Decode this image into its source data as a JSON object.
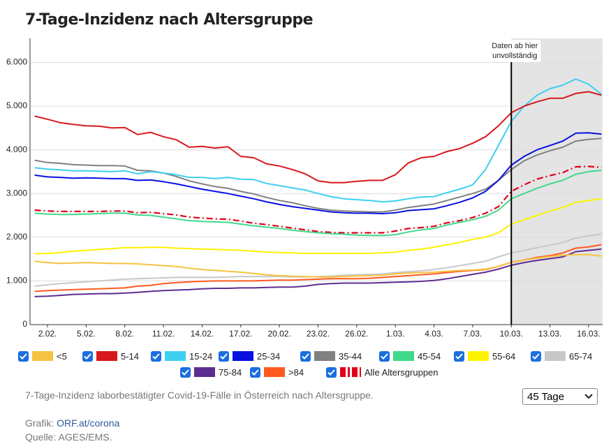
{
  "chart_data": {
    "type": "line",
    "title": "7-Tage-Inzidenz nach Altersgruppe",
    "categories": [
      null,
      "2.02.",
      null,
      null,
      "5.02.",
      null,
      null,
      "8.02.",
      null,
      null,
      "11.02.",
      null,
      null,
      "14.02.",
      null,
      null,
      "17.02.",
      null,
      null,
      "20.02.",
      null,
      null,
      "23.02.",
      null,
      null,
      "26.02.",
      null,
      null,
      "1.03.",
      null,
      null,
      "4.03.",
      null,
      null,
      "7.03.",
      null,
      null,
      "10.03.",
      null,
      null,
      "13.03.",
      null,
      null,
      "16.03.",
      null
    ],
    "ylim": [
      0,
      6550
    ],
    "yticks": [
      0,
      {
        "value": 1000,
        "label": "1.000"
      },
      {
        "value": 2000,
        "label": "2.000"
      },
      {
        "value": 3000,
        "label": "3.000"
      },
      {
        "value": 4000,
        "label": "4.000"
      },
      {
        "value": 5000,
        "label": "5.000"
      },
      {
        "value": 6000,
        "label": "6.000"
      }
    ],
    "grid": true,
    "annotation": {
      "lines": [
        "Daten ab hier",
        "unvollständig"
      ],
      "from": "10.03."
    },
    "series": [
      {
        "name": "<5",
        "color": "#f5c342",
        "values": [
          1450,
          1420,
          1400,
          1410,
          1420,
          1410,
          1400,
          1400,
          1390,
          1370,
          1350,
          1330,
          1290,
          1260,
          1240,
          1220,
          1200,
          1170,
          1140,
          1120,
          1110,
          1100,
          1090,
          1090,
          1100,
          1110,
          1120,
          1130,
          1160,
          1180,
          1190,
          1200,
          1220,
          1240,
          1250,
          1270,
          1330,
          1430,
          1480,
          1520,
          1560,
          1590,
          1600,
          1600,
          1570
        ]
      },
      {
        "name": "5-14",
        "color": "#d7191c",
        "values": [
          4770,
          4700,
          4620,
          4580,
          4550,
          4540,
          4500,
          4510,
          4350,
          4400,
          4300,
          4230,
          4060,
          4080,
          4040,
          4070,
          3850,
          3820,
          3680,
          3630,
          3550,
          3450,
          3290,
          3250,
          3250,
          3280,
          3300,
          3300,
          3430,
          3700,
          3820,
          3850,
          3960,
          4030,
          4150,
          4300,
          4550,
          4850,
          5000,
          5100,
          5180,
          5180,
          5290,
          5330,
          5250
        ]
      },
      {
        "name": "15-24",
        "color": "#3dd0f0",
        "values": [
          3590,
          3560,
          3540,
          3520,
          3520,
          3510,
          3500,
          3520,
          3450,
          3500,
          3470,
          3430,
          3370,
          3370,
          3340,
          3370,
          3330,
          3320,
          3230,
          3180,
          3130,
          3080,
          3000,
          2930,
          2880,
          2860,
          2840,
          2810,
          2830,
          2880,
          2920,
          2930,
          3020,
          3100,
          3200,
          3550,
          4100,
          4650,
          5000,
          5250,
          5400,
          5480,
          5620,
          5500,
          5270
        ]
      },
      {
        "name": "25-34",
        "color": "#0a10e0",
        "values": [
          3420,
          3380,
          3370,
          3350,
          3360,
          3350,
          3340,
          3340,
          3300,
          3310,
          3270,
          3220,
          3160,
          3100,
          3050,
          3000,
          2940,
          2880,
          2810,
          2750,
          2700,
          2660,
          2620,
          2580,
          2560,
          2550,
          2550,
          2540,
          2560,
          2610,
          2630,
          2650,
          2720,
          2800,
          2900,
          3050,
          3300,
          3650,
          3850,
          4000,
          4100,
          4200,
          4380,
          4390,
          4360
        ]
      },
      {
        "name": "35-44",
        "color": "#808080",
        "values": [
          3760,
          3710,
          3690,
          3660,
          3650,
          3640,
          3640,
          3630,
          3530,
          3520,
          3470,
          3390,
          3290,
          3220,
          3160,
          3120,
          3050,
          2990,
          2910,
          2840,
          2790,
          2720,
          2660,
          2620,
          2600,
          2590,
          2580,
          2580,
          2620,
          2680,
          2720,
          2760,
          2840,
          2920,
          3000,
          3100,
          3300,
          3550,
          3750,
          3880,
          3980,
          4060,
          4200,
          4240,
          4260
        ]
      },
      {
        "name": "45-54",
        "color": "#3fd98a",
        "values": [
          2550,
          2530,
          2520,
          2520,
          2530,
          2540,
          2550,
          2550,
          2510,
          2500,
          2460,
          2420,
          2380,
          2360,
          2350,
          2340,
          2300,
          2260,
          2230,
          2200,
          2160,
          2130,
          2100,
          2080,
          2070,
          2050,
          2040,
          2040,
          2060,
          2120,
          2170,
          2200,
          2280,
          2340,
          2400,
          2480,
          2620,
          2880,
          3000,
          3120,
          3220,
          3300,
          3440,
          3500,
          3530
        ]
      },
      {
        "name": "55-64",
        "color": "#fff200",
        "values": [
          1620,
          1630,
          1650,
          1680,
          1700,
          1720,
          1740,
          1760,
          1760,
          1770,
          1770,
          1750,
          1740,
          1730,
          1720,
          1710,
          1700,
          1680,
          1660,
          1650,
          1640,
          1630,
          1630,
          1630,
          1630,
          1630,
          1630,
          1640,
          1660,
          1700,
          1730,
          1770,
          1830,
          1880,
          1950,
          2000,
          2100,
          2300,
          2400,
          2500,
          2600,
          2680,
          2800,
          2840,
          2880
        ]
      },
      {
        "name": "65-74",
        "color": "#c8c8c8",
        "values": [
          880,
          910,
          940,
          960,
          980,
          1000,
          1020,
          1040,
          1050,
          1060,
          1070,
          1080,
          1080,
          1080,
          1080,
          1090,
          1100,
          1100,
          1100,
          1100,
          1090,
          1090,
          1100,
          1110,
          1130,
          1140,
          1150,
          1160,
          1190,
          1210,
          1230,
          1260,
          1300,
          1350,
          1400,
          1450,
          1550,
          1640,
          1700,
          1760,
          1820,
          1880,
          1980,
          2030,
          2070
        ]
      },
      {
        "name": "75-84",
        "color": "#5e2d91",
        "values": [
          640,
          650,
          670,
          690,
          700,
          710,
          710,
          720,
          740,
          760,
          780,
          790,
          800,
          820,
          830,
          830,
          840,
          840,
          850,
          860,
          860,
          880,
          920,
          940,
          950,
          950,
          950,
          960,
          970,
          980,
          990,
          1010,
          1050,
          1100,
          1150,
          1200,
          1270,
          1360,
          1420,
          1470,
          1510,
          1550,
          1670,
          1700,
          1730
        ]
      },
      {
        "name": ">84",
        "color": "#ff5a1f",
        "values": [
          760,
          780,
          790,
          800,
          810,
          820,
          830,
          840,
          880,
          900,
          940,
          960,
          980,
          990,
          1000,
          1000,
          1000,
          1000,
          1010,
          1020,
          1020,
          1030,
          1040,
          1050,
          1050,
          1050,
          1060,
          1080,
          1100,
          1120,
          1140,
          1160,
          1190,
          1220,
          1240,
          1260,
          1330,
          1430,
          1480,
          1540,
          1580,
          1640,
          1750,
          1780,
          1830
        ]
      },
      {
        "name": "Alle Altersgruppen",
        "color": "#e0001b",
        "style": "dashed",
        "values": [
          2620,
          2600,
          2590,
          2590,
          2590,
          2590,
          2600,
          2600,
          2560,
          2570,
          2540,
          2510,
          2460,
          2440,
          2420,
          2410,
          2370,
          2320,
          2290,
          2250,
          2210,
          2170,
          2130,
          2110,
          2100,
          2100,
          2100,
          2100,
          2140,
          2200,
          2220,
          2250,
          2330,
          2380,
          2450,
          2550,
          2700,
          3050,
          3200,
          3330,
          3410,
          3480,
          3610,
          3620,
          3600
        ]
      }
    ]
  },
  "description": "7-Tage-Inzidenz laborbestätigter Covid-19-Fälle in Österreich nach Altersgruppe.",
  "range_select": "45 Tage",
  "credit": {
    "label": "Grafik: ",
    "link": "ORF.at/corona",
    "source": "Quelle: AGES/EMS."
  }
}
